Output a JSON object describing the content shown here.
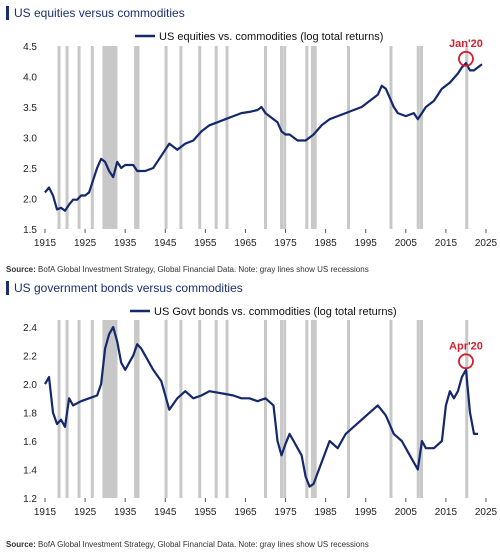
{
  "panels": [
    {
      "title": "US equities versus commodities",
      "source_label": "Source:",
      "source_text": "BofA Global Investment Strategy, Global Financial Data. Note: gray lines show US recessions"
    },
    {
      "title": "US government bonds versus commodities",
      "source_label": "Source:",
      "source_text": "BofA Global Investment Strategy, Global Financial Data. Note: gray lines show US recessions"
    }
  ],
  "colors": {
    "series": "#14286b",
    "recession": "#c8c8c8",
    "annotation": "#d1202f"
  },
  "chart_data": [
    {
      "type": "line",
      "title": "US equities versus commodities",
      "xlabel": "",
      "ylabel": "",
      "xlim": [
        1915,
        2025
      ],
      "ylim": [
        1.5,
        4.5
      ],
      "xticks": [
        1915,
        1925,
        1935,
        1945,
        1955,
        1965,
        1975,
        1985,
        1995,
        2005,
        2015,
        2025
      ],
      "yticks": [
        1.5,
        2.0,
        2.5,
        3.0,
        3.5,
        4.0,
        4.5
      ],
      "ytick_labels": [
        "1.5",
        "2.0",
        "2.5",
        "3.0",
        "3.5",
        "4.0",
        "4.5"
      ],
      "legend": "top-center",
      "series": [
        {
          "name": "US equities vs. commodities (log total returns)",
          "x": [
            1915,
            1916,
            1917,
            1918,
            1919,
            1920,
            1921,
            1922,
            1923,
            1924,
            1925,
            1926,
            1927,
            1928,
            1929,
            1930,
            1931,
            1932,
            1933,
            1934,
            1935,
            1936,
            1937,
            1938,
            1940,
            1942,
            1944,
            1946,
            1948,
            1950,
            1952,
            1954,
            1956,
            1958,
            1960,
            1962,
            1964,
            1966,
            1968,
            1969,
            1970,
            1972,
            1973,
            1974,
            1975,
            1976,
            1978,
            1980,
            1982,
            1984,
            1986,
            1988,
            1990,
            1992,
            1994,
            1996,
            1998,
            1999,
            2000,
            2001,
            2002,
            2003,
            2005,
            2007,
            2008,
            2009,
            2010,
            2012,
            2014,
            2016,
            2018,
            2019,
            2020,
            2021,
            2022,
            2023,
            2024
          ],
          "values": [
            2.1,
            2.18,
            2.05,
            1.82,
            1.85,
            1.8,
            1.9,
            1.98,
            1.98,
            2.05,
            2.05,
            2.1,
            2.3,
            2.5,
            2.65,
            2.6,
            2.45,
            2.35,
            2.6,
            2.5,
            2.55,
            2.55,
            2.55,
            2.45,
            2.45,
            2.5,
            2.7,
            2.9,
            2.8,
            2.9,
            2.95,
            3.1,
            3.2,
            3.25,
            3.3,
            3.35,
            3.4,
            3.42,
            3.45,
            3.5,
            3.4,
            3.3,
            3.25,
            3.1,
            3.05,
            3.05,
            2.95,
            2.95,
            3.05,
            3.2,
            3.3,
            3.35,
            3.4,
            3.45,
            3.5,
            3.6,
            3.7,
            3.85,
            3.8,
            3.65,
            3.5,
            3.4,
            3.35,
            3.4,
            3.3,
            3.4,
            3.5,
            3.6,
            3.8,
            3.9,
            4.05,
            4.15,
            4.22,
            4.1,
            4.1,
            4.15,
            4.2
          ]
        }
      ],
      "recession_years": [
        1918.5,
        1920.5,
        1923.5,
        1926.8,
        1929.7,
        1930.3,
        1930.9,
        1931.5,
        1932.1,
        1932.7,
        1937.6,
        1938.2,
        1945.2,
        1948.9,
        1953.6,
        1957.7,
        1960.4,
        1970.0,
        1974.0,
        1974.8,
        1980.3,
        1981.7,
        1982.4,
        1990.7,
        2001.3,
        2008.1,
        2008.9,
        2020.2
      ],
      "annotations": [
        {
          "text": "Jan'20",
          "x": 2020,
          "y": 4.29
        }
      ]
    },
    {
      "type": "line",
      "title": "US government bonds versus commodities",
      "xlabel": "",
      "ylabel": "",
      "xlim": [
        1915,
        2025
      ],
      "ylim": [
        1.2,
        2.45
      ],
      "xticks": [
        1915,
        1925,
        1935,
        1945,
        1955,
        1965,
        1975,
        1985,
        1995,
        2005,
        2015,
        2025
      ],
      "yticks": [
        1.2,
        1.4,
        1.6,
        1.8,
        2.0,
        2.2,
        2.4
      ],
      "ytick_labels": [
        "1.2",
        "1.4",
        "1.6",
        "1.8",
        "2.0",
        "2.2",
        "2.4"
      ],
      "legend": "top-center",
      "series": [
        {
          "name": "US Govt bonds vs. commodities (log total returns)",
          "x": [
            1915,
            1916,
            1917,
            1918,
            1919,
            1920,
            1921,
            1922,
            1924,
            1926,
            1928,
            1929,
            1930,
            1931,
            1932,
            1933,
            1934,
            1935,
            1936,
            1937,
            1938,
            1939,
            1940,
            1942,
            1944,
            1946,
            1948,
            1950,
            1952,
            1954,
            1956,
            1958,
            1960,
            1962,
            1964,
            1966,
            1968,
            1970,
            1972,
            1973,
            1974,
            1975,
            1976,
            1977,
            1978,
            1979,
            1980,
            1981,
            1982,
            1984,
            1986,
            1988,
            1990,
            1992,
            1994,
            1996,
            1998,
            2000,
            2002,
            2004,
            2006,
            2008,
            2009,
            2010,
            2012,
            2014,
            2015,
            2016,
            2017,
            2018,
            2019,
            2020,
            2021,
            2022,
            2023
          ],
          "values": [
            2.0,
            2.05,
            1.8,
            1.72,
            1.75,
            1.7,
            1.9,
            1.85,
            1.88,
            1.9,
            1.92,
            2.0,
            2.25,
            2.35,
            2.4,
            2.3,
            2.15,
            2.1,
            2.15,
            2.2,
            2.28,
            2.25,
            2.2,
            2.1,
            2.02,
            1.82,
            1.9,
            1.95,
            1.9,
            1.92,
            1.95,
            1.94,
            1.93,
            1.92,
            1.9,
            1.9,
            1.88,
            1.9,
            1.85,
            1.6,
            1.5,
            1.58,
            1.65,
            1.6,
            1.55,
            1.5,
            1.35,
            1.28,
            1.3,
            1.45,
            1.6,
            1.55,
            1.65,
            1.7,
            1.75,
            1.8,
            1.85,
            1.78,
            1.65,
            1.6,
            1.5,
            1.4,
            1.6,
            1.55,
            1.55,
            1.6,
            1.85,
            1.95,
            1.9,
            1.95,
            2.05,
            2.1,
            1.8,
            1.65,
            1.65
          ]
        }
      ],
      "recession_years": [
        1918.5,
        1920.5,
        1923.5,
        1926.8,
        1929.7,
        1930.3,
        1930.9,
        1931.5,
        1932.1,
        1932.7,
        1937.6,
        1938.2,
        1945.2,
        1948.9,
        1953.6,
        1957.7,
        1960.4,
        1970.0,
        1974.0,
        1974.8,
        1980.3,
        1981.7,
        1982.4,
        1990.7,
        2001.3,
        2008.1,
        2008.9,
        2020.2
      ],
      "annotations": [
        {
          "text": "Apr'20",
          "x": 2020,
          "y": 2.16
        }
      ]
    }
  ]
}
